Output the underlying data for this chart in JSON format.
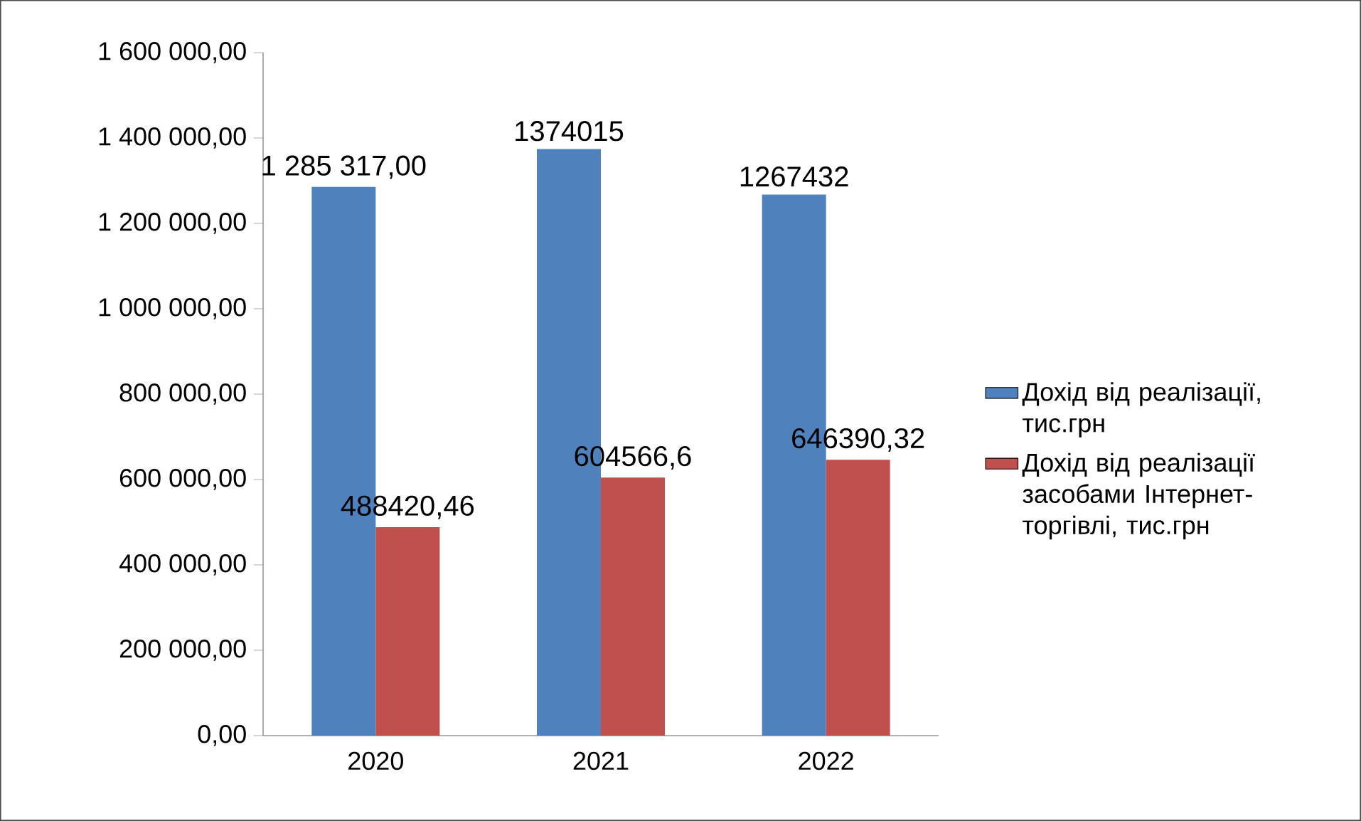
{
  "chart_data": {
    "type": "bar",
    "categories": [
      "2020",
      "2021",
      "2022"
    ],
    "series": [
      {
        "name": "Дохід від реалізації, тис.грн",
        "color": "#4f81bd",
        "values": [
          1285317,
          1374015,
          1267432
        ],
        "value_labels": [
          "1 285 317,00",
          "1374015",
          "1267432"
        ]
      },
      {
        "name": "Дохід від реалізації засобами Інтернет-торгівлі, тис.грн",
        "color": "#c0504d",
        "values": [
          488420.46,
          604566.6,
          646390.32
        ],
        "value_labels": [
          "488420,46",
          "604566,6",
          "646390,32"
        ]
      }
    ],
    "ylim": [
      0,
      1600000
    ],
    "yticks": [
      {
        "value": 0,
        "label": "0,00"
      },
      {
        "value": 200000,
        "label": "200 000,00"
      },
      {
        "value": 400000,
        "label": "400 000,00"
      },
      {
        "value": 600000,
        "label": "600 000,00"
      },
      {
        "value": 800000,
        "label": "800 000,00"
      },
      {
        "value": 1000000,
        "label": "1 000 000,00"
      },
      {
        "value": 1200000,
        "label": "1 200 000,00"
      },
      {
        "value": 1400000,
        "label": "1 400 000,00"
      },
      {
        "value": 1600000,
        "label": "1 600 000,00"
      }
    ],
    "legend": "right"
  }
}
